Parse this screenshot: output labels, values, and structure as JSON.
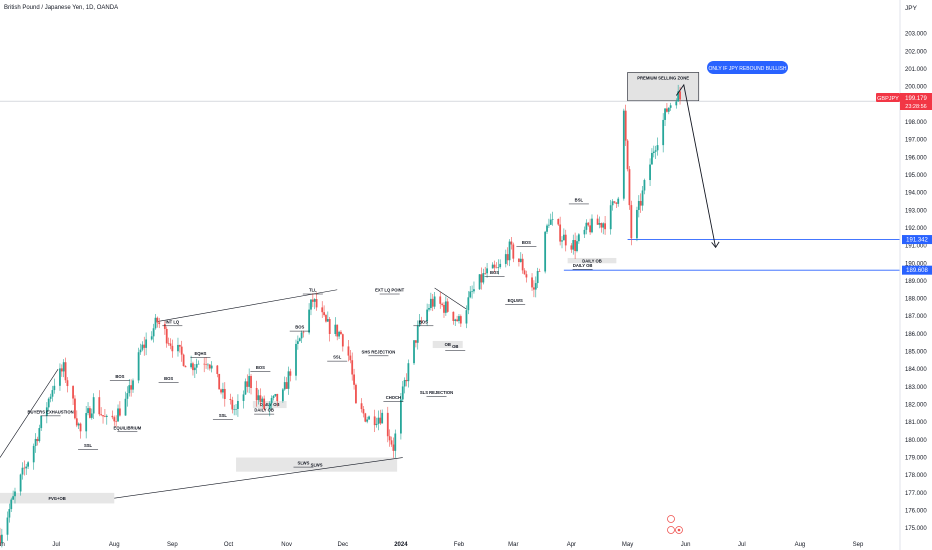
{
  "header": {
    "title": "British Pound / Japanese Yen, 1D, OANDA",
    "currency": "JPY"
  },
  "price_tags": {
    "current_pair": "GBPJPY",
    "current_price": "199.179",
    "countdown": "23:28:56",
    "level_1": "191.342",
    "level_2": "189.608"
  },
  "callout": "ONLY IF JPY REBOUND BULLISH",
  "colors": {
    "up": "#26a69a",
    "down": "#ef5350",
    "candle_body": "#131722",
    "level_line": "#2962ff",
    "price_red": "#f23645",
    "zone": "#e0e0e0"
  },
  "chart_data": {
    "type": "candlestick",
    "title": "British Pound / Japanese Yen, 1D, OANDA",
    "ylim": [
      174.5,
      204.0
    ],
    "y_ticks": [
      175,
      176,
      177,
      178,
      179,
      180,
      181,
      182,
      183,
      184,
      185,
      186,
      187,
      188,
      189,
      190,
      191,
      192,
      193,
      194,
      195,
      196,
      197,
      198,
      200,
      201,
      202,
      203
    ],
    "x_ticks": [
      {
        "label": "Jun",
        "date": "2023-06-01"
      },
      {
        "label": "Jul",
        "date": "2023-07-01"
      },
      {
        "label": "Aug",
        "date": "2023-08-01"
      },
      {
        "label": "Sep",
        "date": "2023-09-01"
      },
      {
        "label": "Oct",
        "date": "2023-10-01"
      },
      {
        "label": "Nov",
        "date": "2023-11-01"
      },
      {
        "label": "Dec",
        "date": "2023-12-01"
      },
      {
        "label": "2024",
        "date": "2024-01-01"
      },
      {
        "label": "Feb",
        "date": "2024-02-01"
      },
      {
        "label": "Mar",
        "date": "2024-03-01"
      },
      {
        "label": "Apr",
        "date": "2024-04-01"
      },
      {
        "label": "May",
        "date": "2024-05-01"
      },
      {
        "label": "Jun",
        "date": "2024-06-01"
      },
      {
        "label": "Jul",
        "date": "2024-07-01"
      },
      {
        "label": "Aug",
        "date": "2024-08-01"
      },
      {
        "label": "Sep",
        "date": "2024-09-01"
      }
    ],
    "price_path": [
      {
        "date": "2023-06-01",
        "price": 174.6
      },
      {
        "date": "2023-06-10",
        "price": 177.2
      },
      {
        "date": "2023-06-20",
        "price": 180.0
      },
      {
        "date": "2023-06-30",
        "price": 183.3
      },
      {
        "date": "2023-07-05",
        "price": 184.0
      },
      {
        "date": "2023-07-14",
        "price": 180.4
      },
      {
        "date": "2023-07-21",
        "price": 182.2
      },
      {
        "date": "2023-07-28",
        "price": 181.0
      },
      {
        "date": "2023-08-01",
        "price": 181.3
      },
      {
        "date": "2023-08-08",
        "price": 182.3
      },
      {
        "date": "2023-08-15",
        "price": 185.0
      },
      {
        "date": "2023-08-24",
        "price": 186.7
      },
      {
        "date": "2023-09-01",
        "price": 185.4
      },
      {
        "date": "2023-09-10",
        "price": 184.2
      },
      {
        "date": "2023-09-20",
        "price": 184.6
      },
      {
        "date": "2023-09-28",
        "price": 182.5
      },
      {
        "date": "2023-10-05",
        "price": 181.6
      },
      {
        "date": "2023-10-12",
        "price": 183.4
      },
      {
        "date": "2023-10-20",
        "price": 181.8
      },
      {
        "date": "2023-10-30",
        "price": 182.5
      },
      {
        "date": "2023-11-05",
        "price": 184.7
      },
      {
        "date": "2023-11-15",
        "price": 187.9
      },
      {
        "date": "2023-11-22",
        "price": 186.5
      },
      {
        "date": "2023-11-30",
        "price": 186.0
      },
      {
        "date": "2023-12-05",
        "price": 184.5
      },
      {
        "date": "2023-12-08",
        "price": 181.8
      },
      {
        "date": "2023-12-15",
        "price": 181.2
      },
      {
        "date": "2023-12-22",
        "price": 181.4
      },
      {
        "date": "2023-12-28",
        "price": 179.6
      },
      {
        "date": "2024-01-03",
        "price": 183.2
      },
      {
        "date": "2024-01-10",
        "price": 186.2
      },
      {
        "date": "2024-01-17",
        "price": 187.8
      },
      {
        "date": "2024-01-25",
        "price": 187.5
      },
      {
        "date": "2024-02-01",
        "price": 186.7
      },
      {
        "date": "2024-02-08",
        "price": 188.3
      },
      {
        "date": "2024-02-15",
        "price": 189.4
      },
      {
        "date": "2024-02-22",
        "price": 189.6
      },
      {
        "date": "2024-02-28",
        "price": 190.8
      },
      {
        "date": "2024-03-05",
        "price": 190.0
      },
      {
        "date": "2024-03-12",
        "price": 188.4
      },
      {
        "date": "2024-03-20",
        "price": 192.5
      },
      {
        "date": "2024-03-27",
        "price": 191.5
      },
      {
        "date": "2024-04-03",
        "price": 191.0
      },
      {
        "date": "2024-04-10",
        "price": 192.0
      },
      {
        "date": "2024-04-20",
        "price": 192.4
      },
      {
        "date": "2024-04-26",
        "price": 194.0
      },
      {
        "date": "2024-04-29",
        "price": 198.5
      },
      {
        "date": "2024-05-03",
        "price": 191.5
      },
      {
        "date": "2024-05-08",
        "price": 193.5
      },
      {
        "date": "2024-05-15",
        "price": 196.5
      },
      {
        "date": "2024-05-22",
        "price": 198.7
      },
      {
        "date": "2024-05-27",
        "price": 199.6
      },
      {
        "date": "2024-05-30",
        "price": 199.18
      }
    ],
    "zones": [
      {
        "label": "PREMIUM SELLING ZONE",
        "date_from": "2024-05-01",
        "date_to": "2024-06-08",
        "price_from": 199.2,
        "price_to": 200.8
      },
      {
        "label": "FVG+OB",
        "date_from": "2023-06-01",
        "date_to": "2023-08-01",
        "price_from": 176.4,
        "price_to": 177.0
      },
      {
        "label": "SLWS",
        "date_from": "2023-10-05",
        "date_to": "2023-12-30",
        "price_from": 178.2,
        "price_to": 179.0
      },
      {
        "label": "DAILY OB",
        "date_from": "2023-10-14",
        "date_to": "2023-11-01",
        "price_from": 181.8,
        "price_to": 182.2
      },
      {
        "label": "OB",
        "date_from": "2024-01-18",
        "date_to": "2024-02-03",
        "price_from": 185.2,
        "price_to": 185.6
      },
      {
        "label": "DAILY OB",
        "date_from": "2024-03-30",
        "date_to": "2024-04-25",
        "price_from": 190.0,
        "price_to": 190.3
      }
    ],
    "annotations": [
      {
        "label": "BUYERS EXHAUSTION",
        "date": "2023-06-28",
        "price": 181.5
      },
      {
        "label": "SSL",
        "date": "2023-07-18",
        "price": 179.6
      },
      {
        "label": "EQUILIBRIUM",
        "date": "2023-08-08",
        "price": 180.6
      },
      {
        "label": "BOS",
        "date": "2023-08-04",
        "price": 183.5
      },
      {
        "label": "INT LQ",
        "date": "2023-09-01",
        "price": 186.6
      },
      {
        "label": "EQHS",
        "date": "2023-09-16",
        "price": 184.8
      },
      {
        "label": "BOS",
        "date": "2023-08-30",
        "price": 183.4
      },
      {
        "label": "BOS",
        "date": "2023-10-18",
        "price": 184.0
      },
      {
        "label": "SSL",
        "date": "2023-09-28",
        "price": 181.3
      },
      {
        "label": "DAILY OB",
        "date": "2023-10-20",
        "price": 181.6
      },
      {
        "label": "BOS",
        "date": "2023-11-08",
        "price": 186.3
      },
      {
        "label": "TLL",
        "date": "2023-11-15",
        "price": 188.4
      },
      {
        "label": "SSL",
        "date": "2023-11-28",
        "price": 184.6
      },
      {
        "label": "EXT LQ POINT",
        "date": "2023-12-26",
        "price": 188.4
      },
      {
        "label": "SHS REJECTION",
        "date": "2023-12-20",
        "price": 184.9
      },
      {
        "label": "CHOCH",
        "date": "2023-12-28",
        "price": 182.3
      },
      {
        "label": "SLWS",
        "date": "2023-11-10",
        "price": 178.6
      },
      {
        "label": "SLS REJECTION",
        "date": "2024-01-20",
        "price": 182.6
      },
      {
        "label": "BOS",
        "date": "2024-01-13",
        "price": 186.6
      },
      {
        "label": "OB",
        "date": "2024-01-30",
        "price": 185.2
      },
      {
        "label": "BOS",
        "date": "2024-02-20",
        "price": 189.4
      },
      {
        "label": "EQLWS",
        "date": "2024-03-02",
        "price": 187.8
      },
      {
        "label": "BOS",
        "date": "2024-03-08",
        "price": 191.1
      },
      {
        "label": "BSL",
        "date": "2024-04-05",
        "price": 193.5
      },
      {
        "label": "DAILY OB",
        "date": "2024-04-07",
        "price": 189.8
      }
    ],
    "levels": [
      {
        "price": 191.342,
        "date_from": "2024-05-01"
      },
      {
        "price": 189.608,
        "date_from": "2024-03-28"
      }
    ],
    "current_price_line": 199.179,
    "trendlines": [
      {
        "from": {
          "date": "2023-06-01",
          "price": 179.0
        },
        "to": {
          "date": "2023-07-02",
          "price": 184.0
        }
      },
      {
        "from": {
          "date": "2023-08-24",
          "price": 186.7
        },
        "to": {
          "date": "2023-11-28",
          "price": 188.5
        }
      },
      {
        "from": {
          "date": "2023-08-01",
          "price": 176.7
        },
        "to": {
          "date": "2024-01-02",
          "price": 179.0
        }
      },
      {
        "from": {
          "date": "2024-01-19",
          "price": 188.6
        },
        "to": {
          "date": "2024-02-05",
          "price": 187.4
        }
      }
    ],
    "projection": [
      {
        "date": "2024-05-27",
        "price": 199.5
      },
      {
        "date": "2024-05-31",
        "price": 200.1
      },
      {
        "date": "2024-06-17",
        "price": 190.9
      }
    ]
  }
}
